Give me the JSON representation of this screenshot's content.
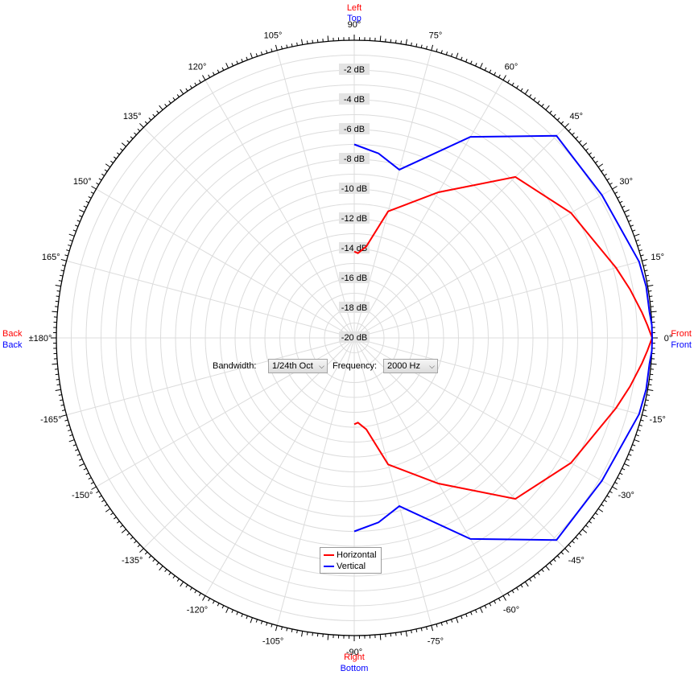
{
  "chart_data": {
    "type": "polar",
    "angle_labels": [
      "0°",
      "15°",
      "30°",
      "45°",
      "60°",
      "75°",
      "90°",
      "105°",
      "120°",
      "135°",
      "150°",
      "165°",
      "±180°",
      "-165°",
      "-150°",
      "-135°",
      "-120°",
      "-105°",
      "-90°",
      "-75°",
      "-60°",
      "-45°",
      "-30°",
      "-15°"
    ],
    "angle_values": [
      0,
      15,
      30,
      45,
      60,
      75,
      90,
      105,
      120,
      135,
      150,
      165,
      180,
      -165,
      -150,
      -135,
      -120,
      -105,
      -90,
      -75,
      -60,
      -45,
      -30,
      -15
    ],
    "radial_labels": [
      "-2 dB",
      "-4 dB",
      "-6 dB",
      "-8 dB",
      "-10 dB",
      "-12 dB",
      "-14 dB",
      "-16 dB",
      "-18 dB",
      "-20 dB"
    ],
    "radial_values": [
      -2,
      -4,
      -6,
      -8,
      -10,
      -12,
      -14,
      -16,
      -18,
      -20
    ],
    "rlim": [
      -20,
      0
    ],
    "direction_labels": {
      "top_primary": "Left",
      "top_secondary": "Top",
      "bottom_primary": "Right",
      "bottom_secondary": "Bottom",
      "left_primary": "Back",
      "left_secondary": "Back",
      "right_primary": "Front",
      "right_secondary": "Front"
    },
    "series": [
      {
        "name": "Horizontal",
        "color": "#ff0000",
        "angles": [
          -90,
          -87.5,
          -82.5,
          -75,
          -60,
          -45,
          -30,
          -15,
          -10,
          -5,
          -2.5,
          0,
          2.5,
          5,
          10,
          15,
          30,
          45,
          60,
          75,
          82.5,
          87.5,
          90
        ],
        "values": [
          -14.2,
          -14.3,
          -13.8,
          -11.2,
          -8.7,
          -4.7,
          -3.2,
          -1.8,
          -1.2,
          -0.6,
          -0.3,
          0,
          -0.3,
          -0.6,
          -1.2,
          -1.8,
          -3.2,
          -4.7,
          -8.7,
          -11.2,
          -13.8,
          -14.3,
          -14.2
        ]
      },
      {
        "name": "Vertical",
        "color": "#0000ff",
        "angles": [
          -90,
          -82.5,
          -75,
          -60,
          -45,
          -30,
          -15,
          -10,
          -5,
          -2.5,
          0,
          2.5,
          5,
          10,
          15,
          30,
          45,
          60,
          75,
          82.5,
          90
        ],
        "values": [
          -7,
          -7.5,
          -8.3,
          -4.4,
          -0.8,
          -0.8,
          -0.2,
          -0.1,
          -0.1,
          0,
          0,
          0,
          -0.1,
          -0.1,
          -0.2,
          -0.8,
          -0.8,
          -4.4,
          -8.3,
          -7.5,
          -7
        ]
      }
    ],
    "legend_position": "bottom-center",
    "grid": true
  },
  "controls": {
    "bandwidth_label": "Bandwidth:",
    "bandwidth_value": "1/24th Oct",
    "frequency_label": "Frequency:",
    "frequency_value": "2000 Hz"
  },
  "legend": {
    "items": [
      {
        "label": "Horizontal",
        "color": "#ff0000"
      },
      {
        "label": "Vertical",
        "color": "#0000ff"
      }
    ]
  }
}
